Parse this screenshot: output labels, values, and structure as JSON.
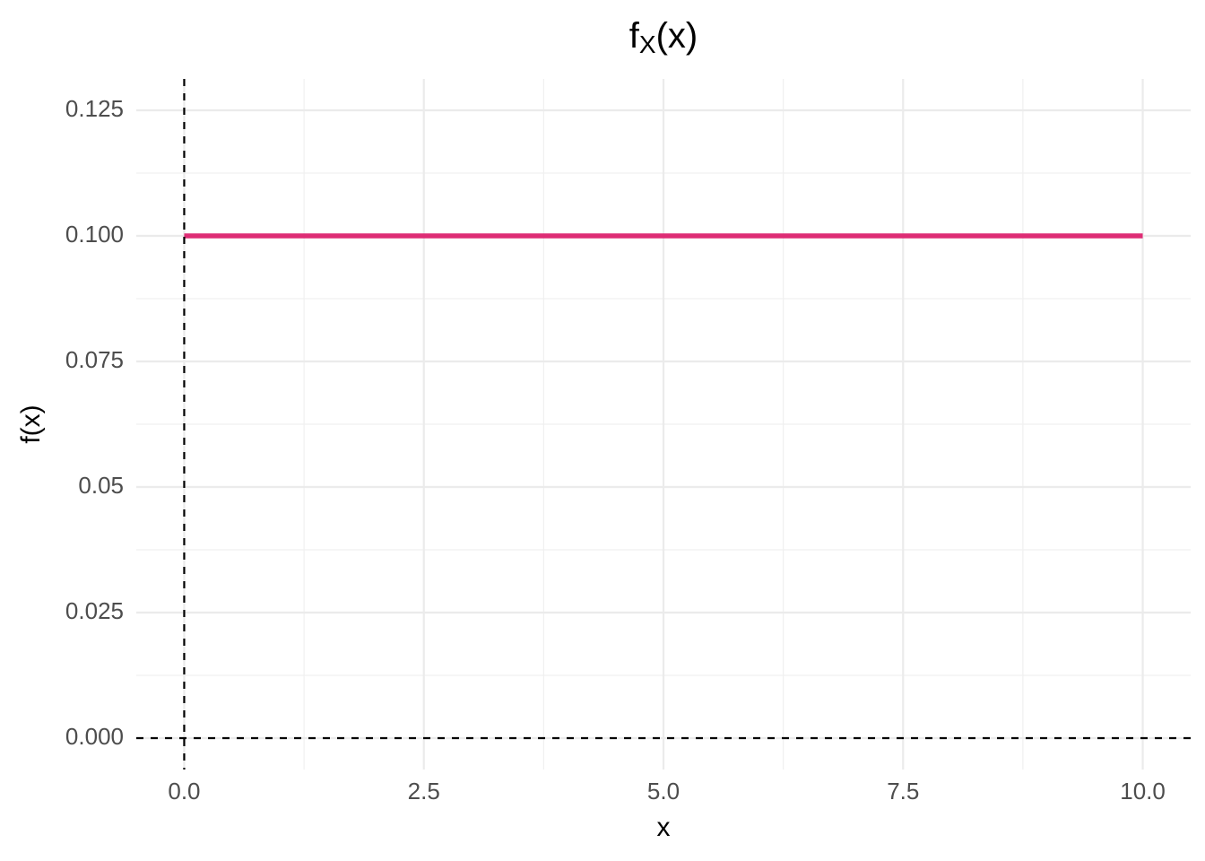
{
  "chart_data": {
    "type": "line",
    "title": [
      "f",
      "X",
      "(x)"
    ],
    "x_label": "x",
    "y_label": "f(x)",
    "x": [
      0,
      10
    ],
    "series": [
      {
        "color": "#de2d75",
        "values": [
          0.1,
          0.1
        ]
      }
    ],
    "xlim": [
      -0.5,
      10.5
    ],
    "ylim": [
      -0.00625,
      0.13125
    ],
    "xticks": [
      {
        "value": 0,
        "label": "0.0"
      },
      2.5,
      {
        "value": 5,
        "label": "5.0"
      },
      7.5,
      {
        "value": 10,
        "label": "10.0"
      }
    ],
    "yticks": [
      {
        "value": 0,
        "label": "0.000"
      },
      0.025,
      0.05,
      0.075,
      {
        "value": 0.1,
        "label": "0.100"
      },
      0.125
    ],
    "xminor": [
      1.25,
      3.75,
      6.25,
      8.75
    ],
    "yminor": [
      0.0125,
      0.0375,
      0.0625,
      0.0875,
      0.1125
    ],
    "hlines": [
      0
    ],
    "vlines": [
      0
    ],
    "grid": true
  }
}
